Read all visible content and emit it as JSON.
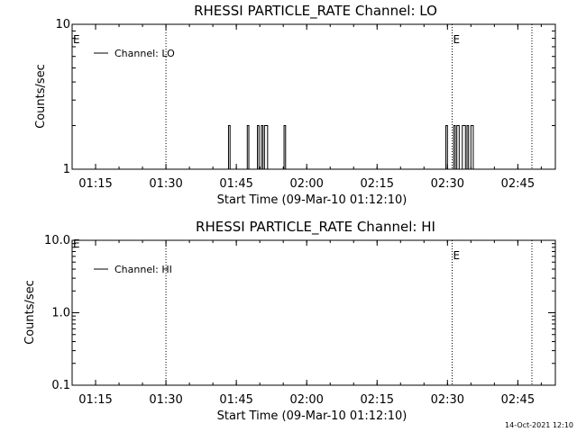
{
  "chart_data": [
    {
      "type": "line",
      "title": "RHESSI PARTICLE_RATE Channel: LO",
      "xlabel": "Start Time (09-Mar-10 01:12:10)",
      "ylabel": "Counts/sec",
      "y_scale": "log",
      "ylim": [
        1,
        10
      ],
      "xlim": [
        "01:10",
        "02:53"
      ],
      "x_ticks": [
        "01:15",
        "01:30",
        "01:45",
        "02:00",
        "02:15",
        "02:30",
        "02:45"
      ],
      "y_ticks": [
        "1",
        "10"
      ],
      "markers": [
        {
          "time": "01:30",
          "label": ""
        },
        {
          "time": "02:31",
          "label": "E"
        },
        {
          "time": "02:48",
          "label": ""
        }
      ],
      "start_marker_label": "E",
      "legend": {
        "position": "top-left",
        "entries": [
          {
            "name": "Channel: LO"
          }
        ]
      },
      "series": [
        {
          "name": "Channel: LO",
          "bursts": [
            {
              "start": "01:43:20",
              "end": "01:43:40",
              "peak": 2
            },
            {
              "start": "01:47:20",
              "end": "01:47:40",
              "peak": 2
            },
            {
              "start": "01:49:30",
              "end": "01:49:50",
              "peak": 2
            },
            {
              "start": "01:50:20",
              "end": "01:50:40",
              "peak": 2
            },
            {
              "start": "01:51:00",
              "end": "01:51:40",
              "peak": 2
            },
            {
              "start": "01:55:10",
              "end": "01:55:30",
              "peak": 2
            },
            {
              "start": "02:29:40",
              "end": "02:30:00",
              "peak": 2
            },
            {
              "start": "02:31:20",
              "end": "02:31:40",
              "peak": 2
            },
            {
              "start": "02:32:00",
              "end": "02:32:30",
              "peak": 2
            },
            {
              "start": "02:33:10",
              "end": "02:33:50",
              "peak": 2
            },
            {
              "start": "02:34:10",
              "end": "02:34:30",
              "peak": 2
            },
            {
              "start": "02:35:00",
              "end": "02:35:30",
              "peak": 2
            }
          ]
        }
      ]
    },
    {
      "type": "line",
      "title": "RHESSI PARTICLE_RATE Channel: HI",
      "xlabel": "Start Time (09-Mar-10 01:12:10)",
      "ylabel": "Counts/sec",
      "y_scale": "log",
      "ylim": [
        0.1,
        10
      ],
      "xlim": [
        "01:10",
        "02:53"
      ],
      "x_ticks": [
        "01:15",
        "01:30",
        "01:45",
        "02:00",
        "02:15",
        "02:30",
        "02:45"
      ],
      "y_ticks": [
        "0.1",
        "1.0",
        "10.0"
      ],
      "markers": [
        {
          "time": "01:30",
          "label": ""
        },
        {
          "time": "02:31",
          "label": "E"
        },
        {
          "time": "02:48",
          "label": ""
        }
      ],
      "start_marker_label": "E",
      "legend": {
        "position": "top-left",
        "entries": [
          {
            "name": "Channel: HI"
          }
        ]
      },
      "series": [
        {
          "name": "Channel: HI",
          "bursts": []
        }
      ]
    }
  ],
  "footer": {
    "timestamp": "14-Oct-2021 12:10"
  }
}
